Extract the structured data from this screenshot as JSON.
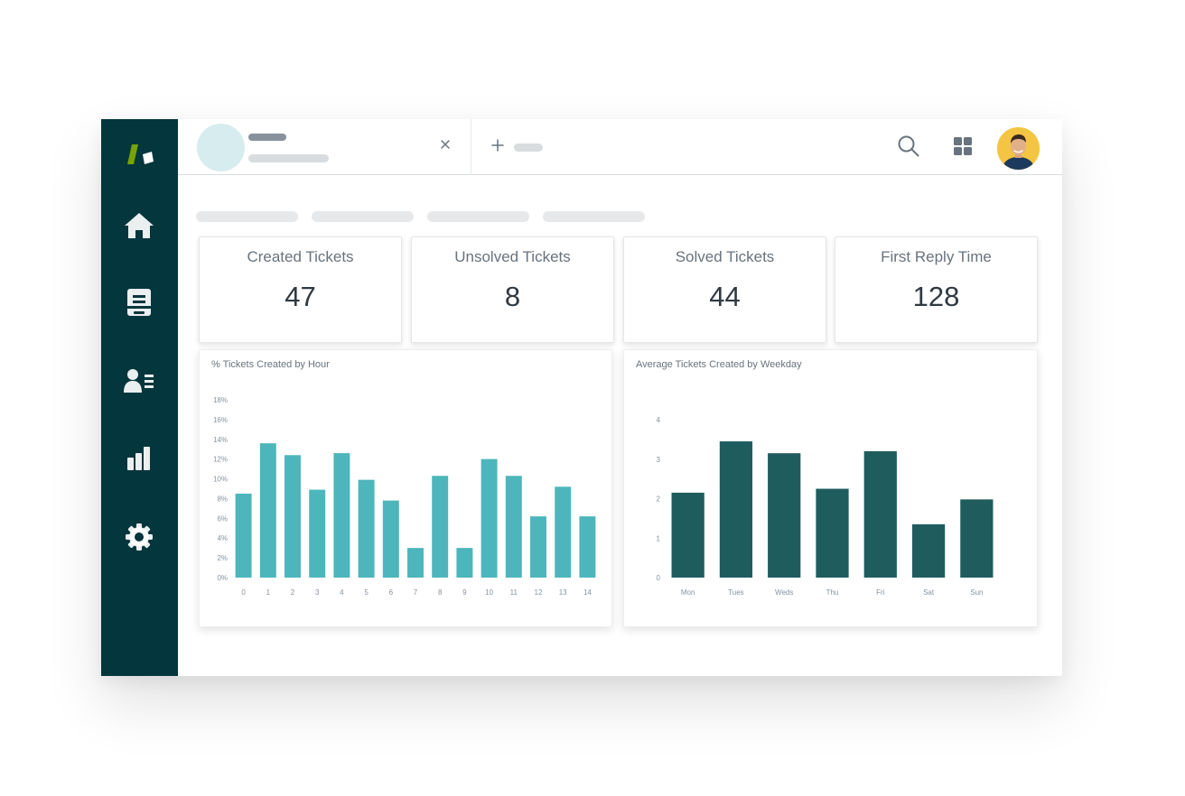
{
  "kpis": [
    {
      "title": "Created Tickets",
      "value": "47"
    },
    {
      "title": "Unsolved Tickets",
      "value": "8"
    },
    {
      "title": "Solved Tickets",
      "value": "44"
    },
    {
      "title": "First Reply Time",
      "value": "128"
    }
  ],
  "icons": {
    "sidebar": [
      "home-icon",
      "views-icon",
      "customers-icon",
      "reporting-icon",
      "settings-icon"
    ],
    "top": [
      "search-icon",
      "apps-grid-icon"
    ],
    "tab_close": "close-icon",
    "new_tab": "plus-icon"
  },
  "colors": {
    "sidebar": "#03363d",
    "hour_bars": "#4cb6bc",
    "weekday_bars": "#1f5c5e",
    "logo_green": "#78a300"
  },
  "chart_data": [
    {
      "type": "bar",
      "title": "% Tickets Created by Hour",
      "categories": [
        "0",
        "1",
        "2",
        "3",
        "4",
        "5",
        "6",
        "7",
        "8",
        "9",
        "10",
        "11",
        "12",
        "13",
        "14"
      ],
      "values": [
        8.5,
        13.6,
        12.4,
        8.9,
        12.6,
        9.9,
        7.8,
        3.0,
        10.3,
        3.0,
        12.0,
        10.3,
        6.2,
        9.2,
        6.2
      ],
      "yticks": [
        "0%",
        "2%",
        "4%",
        "6%",
        "8%",
        "10%",
        "12%",
        "14%",
        "16%",
        "18%"
      ],
      "ylim": [
        0,
        18
      ],
      "color": "#4cb6bc"
    },
    {
      "type": "bar",
      "title": "Average Tickets Created by Weekday",
      "categories": [
        "Mon",
        "Tues",
        "Weds",
        "Thu",
        "Fri",
        "Sat",
        "Sun"
      ],
      "values": [
        2.15,
        3.45,
        3.15,
        2.25,
        3.2,
        1.35,
        1.98
      ],
      "yticks": [
        "0",
        "1",
        "2",
        "3",
        "4"
      ],
      "ylim": [
        0,
        4
      ],
      "color": "#1f5c5e"
    }
  ]
}
